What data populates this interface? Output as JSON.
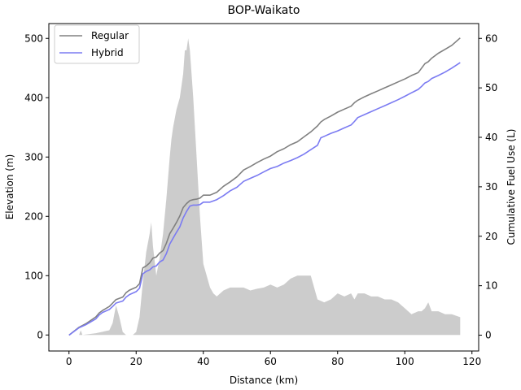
{
  "chart_data": {
    "type": "line",
    "title": "BOP-Waikato",
    "xlabel": "Distance (km)",
    "ylabel": "Elevation (m)",
    "y2label": "Cumulative Fuel Use (L)",
    "xlim": [
      -6,
      122
    ],
    "ylim": [
      -27,
      525
    ],
    "y2lim": [
      -3.2,
      63
    ],
    "xticks": [
      0,
      20,
      40,
      60,
      80,
      100,
      120
    ],
    "yticks": [
      0,
      100,
      200,
      300,
      400,
      500
    ],
    "y2ticks": [
      0,
      10,
      20,
      30,
      40,
      50,
      60
    ],
    "legend_position": "top-left",
    "elevation": {
      "color": "#cccccc",
      "x": [
        0,
        3,
        3.5,
        4,
        8,
        12,
        13,
        14,
        15,
        16,
        17,
        18,
        19,
        20,
        21,
        22,
        23,
        24,
        24.5,
        25,
        26,
        27,
        28,
        29,
        30,
        30.5,
        31,
        32,
        33,
        34,
        34.5,
        35,
        35.5,
        36,
        37,
        38,
        39,
        40,
        41,
        42,
        43,
        44,
        46,
        48,
        50,
        52,
        54,
        56,
        58,
        60,
        62,
        64,
        66,
        68,
        70,
        72,
        74,
        76,
        78,
        80,
        82,
        84,
        85,
        86,
        88,
        90,
        92,
        94,
        96,
        98,
        100,
        101,
        102,
        104,
        105,
        106,
        107,
        108,
        110,
        112,
        114,
        116.5
      ],
      "y": [
        0,
        0,
        8,
        0,
        3,
        8,
        20,
        50,
        30,
        5,
        0,
        0,
        0,
        5,
        30,
        90,
        140,
        170,
        190,
        150,
        100,
        130,
        170,
        230,
        300,
        330,
        350,
        380,
        400,
        440,
        480,
        480,
        500,
        480,
        400,
        300,
        200,
        120,
        100,
        80,
        70,
        65,
        75,
        80,
        80,
        80,
        75,
        78,
        80,
        85,
        80,
        85,
        95,
        100,
        100,
        100,
        60,
        55,
        60,
        70,
        65,
        70,
        60,
        70,
        70,
        65,
        65,
        60,
        60,
        55,
        45,
        40,
        35,
        40,
        40,
        45,
        55,
        40,
        40,
        35,
        35,
        30
      ]
    },
    "series": [
      {
        "name": "Regular",
        "color": "#808080",
        "x": [
          0,
          3,
          5,
          8,
          9,
          10,
          12,
          13,
          14,
          16,
          17,
          18,
          20,
          21,
          22,
          23,
          24,
          25,
          26,
          27,
          28,
          29,
          30,
          31,
          32,
          33,
          34,
          35,
          36,
          37,
          38,
          39,
          40,
          42,
          44,
          46,
          48,
          50,
          52,
          54,
          56,
          58,
          60,
          62,
          64,
          66,
          68,
          70,
          72,
          74,
          75,
          76,
          78,
          80,
          82,
          84,
          85,
          86,
          88,
          90,
          92,
          94,
          96,
          98,
          100,
          102,
          104,
          105,
          106,
          107,
          108,
          110,
          112,
          114,
          116.5
        ],
        "y": [
          0,
          1.6,
          2.3,
          3.7,
          4.5,
          5.0,
          5.8,
          6.5,
          7.2,
          7.7,
          8.6,
          9.1,
          9.7,
          10.4,
          13.6,
          14.0,
          14.6,
          15.6,
          15.8,
          16.6,
          17.1,
          18.6,
          20.5,
          21.6,
          22.8,
          24.1,
          25.8,
          26.6,
          27.2,
          27.4,
          27.5,
          27.7,
          28.3,
          28.3,
          28.9,
          30.1,
          31.0,
          32.0,
          33.4,
          34.1,
          34.9,
          35.6,
          36.2,
          37.1,
          37.7,
          38.5,
          39.1,
          40.1,
          41.1,
          42.3,
          43.1,
          43.6,
          44.3,
          45.1,
          45.7,
          46.3,
          47.0,
          47.5,
          48.2,
          48.8,
          49.4,
          50.0,
          50.6,
          51.2,
          51.8,
          52.5,
          53.1,
          54.0,
          54.9,
          55.3,
          56.0,
          57.0,
          57.8,
          58.6,
          60.1
        ]
      },
      {
        "name": "Hybrid",
        "color": "#7b7bf2",
        "x": [
          0,
          3,
          5,
          8,
          9,
          10,
          12,
          13,
          14,
          16,
          17,
          18,
          20,
          21,
          22,
          23,
          24,
          25,
          26,
          27,
          28,
          29,
          30,
          31,
          32,
          33,
          34,
          35,
          36,
          37,
          38,
          39,
          40,
          42,
          44,
          46,
          48,
          50,
          52,
          54,
          56,
          58,
          60,
          62,
          64,
          66,
          68,
          70,
          72,
          74,
          75,
          76,
          78,
          80,
          82,
          84,
          85,
          86,
          88,
          90,
          92,
          94,
          96,
          98,
          100,
          102,
          104,
          105,
          106,
          107,
          108,
          110,
          112,
          114,
          116.5
        ],
        "y": [
          0,
          1.5,
          2.1,
          3.3,
          4.1,
          4.6,
          5.2,
          5.8,
          6.5,
          6.9,
          7.7,
          8.2,
          8.8,
          9.5,
          12.4,
          12.9,
          13.2,
          13.8,
          14.0,
          14.8,
          15.2,
          16.5,
          18.4,
          19.6,
          20.8,
          21.9,
          23.7,
          25.0,
          26.1,
          26.3,
          26.3,
          26.4,
          26.9,
          26.9,
          27.4,
          28.2,
          29.2,
          29.9,
          31.1,
          31.7,
          32.3,
          33.0,
          33.7,
          34.1,
          34.8,
          35.3,
          35.9,
          36.6,
          37.5,
          38.4,
          39.9,
          40.2,
          40.8,
          41.3,
          41.9,
          42.5,
          43.2,
          44.0,
          44.6,
          45.2,
          45.8,
          46.4,
          47.0,
          47.6,
          48.3,
          49.0,
          49.7,
          50.3,
          51.0,
          51.3,
          51.9,
          52.5,
          53.2,
          54.0,
          55.1
        ]
      }
    ]
  }
}
